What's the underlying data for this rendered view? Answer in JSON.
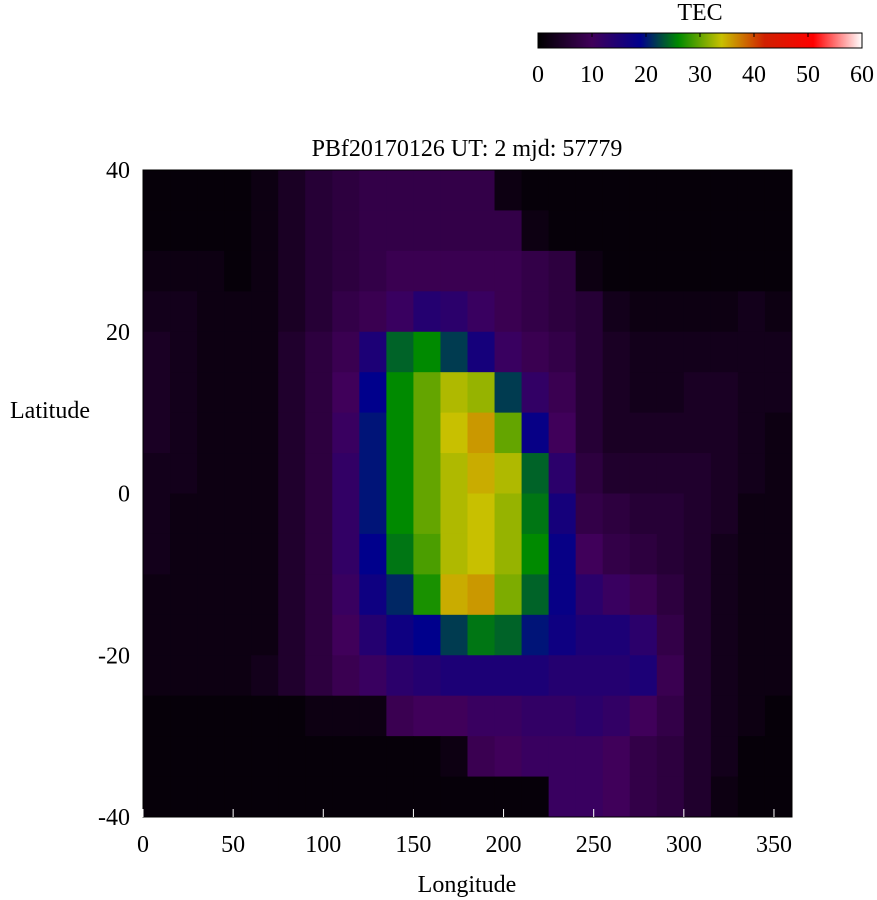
{
  "chart_data": {
    "type": "heatmap",
    "title": "PBf20170126  UT: 2  mjd: 57779",
    "xlabel": "Longitude",
    "ylabel": "Latitude",
    "xlim": [
      0,
      360
    ],
    "ylim": [
      -40,
      40
    ],
    "xticks": [
      "0",
      "50",
      "100",
      "150",
      "200",
      "250",
      "300",
      "350"
    ],
    "yticks": [
      "40",
      "20",
      "0",
      "-20",
      "-40"
    ],
    "colorbar": {
      "label": "TEC",
      "range": [
        0,
        60
      ],
      "ticks": [
        "0",
        "10",
        "20",
        "30",
        "40",
        "50",
        "60"
      ],
      "colormap": [
        {
          "v": 0,
          "c": "#000000"
        },
        {
          "v": 10,
          "c": "#40005a"
        },
        {
          "v": 19,
          "c": "#00008c"
        },
        {
          "v": 26,
          "c": "#008a00"
        },
        {
          "v": 34,
          "c": "#c8c000"
        },
        {
          "v": 42,
          "c": "#d02000"
        },
        {
          "v": 51,
          "c": "#ff0000"
        },
        {
          "v": 60,
          "c": "#ffffff"
        }
      ],
      "position": "top-right"
    },
    "lon_centers": [
      7.5,
      22.5,
      37.5,
      52.5,
      67.5,
      82.5,
      97.5,
      112.5,
      127.5,
      142.5,
      157.5,
      172.5,
      187.5,
      202.5,
      217.5,
      232.5,
      247.5,
      262.5,
      277.5,
      292.5,
      307.5,
      322.5,
      337.5,
      352.5
    ],
    "lat_centers": [
      37.5,
      32.5,
      27.5,
      22.5,
      17.5,
      12.5,
      7.5,
      2.5,
      -2.5,
      -7.5,
      -12.5,
      -17.5,
      -22.5,
      -27.5,
      -32.5,
      -37.5
    ],
    "values": [
      [
        1,
        1,
        1,
        1,
        2,
        4,
        6,
        7,
        8,
        8,
        8,
        8,
        8,
        2,
        1,
        1,
        1,
        1,
        1,
        1,
        1,
        1,
        1,
        1
      ],
      [
        1,
        1,
        1,
        1,
        2,
        4,
        6,
        7,
        8,
        8,
        8,
        8,
        8,
        8,
        2,
        1,
        1,
        1,
        1,
        1,
        1,
        1,
        1,
        1
      ],
      [
        2,
        2,
        2,
        1,
        2,
        4,
        6,
        7,
        8,
        9,
        9,
        9,
        9,
        9,
        8,
        7,
        2,
        1,
        1,
        1,
        1,
        1,
        1,
        1
      ],
      [
        3,
        3,
        2,
        2,
        2,
        4,
        6,
        8,
        9,
        11,
        14,
        13,
        11,
        9,
        8,
        7,
        6,
        3,
        2,
        2,
        2,
        2,
        3,
        2
      ],
      [
        4,
        3,
        2,
        2,
        2,
        5,
        7,
        9,
        15,
        24,
        26,
        22,
        16,
        11,
        9,
        8,
        6,
        4,
        3,
        3,
        3,
        3,
        3,
        3
      ],
      [
        4,
        3,
        2,
        2,
        2,
        5,
        7,
        10,
        19,
        26,
        30,
        33,
        32,
        22,
        12,
        9,
        6,
        4,
        3,
        3,
        4,
        4,
        3,
        3
      ],
      [
        4,
        3,
        2,
        2,
        2,
        5,
        7,
        11,
        20,
        26,
        30,
        34,
        36,
        30,
        18,
        10,
        6,
        4,
        4,
        4,
        4,
        4,
        3,
        2
      ],
      [
        3,
        3,
        2,
        2,
        2,
        5,
        7,
        12,
        20,
        26,
        30,
        33,
        35,
        33,
        24,
        13,
        7,
        5,
        5,
        5,
        5,
        4,
        3,
        2
      ],
      [
        3,
        2,
        2,
        2,
        2,
        5,
        7,
        12,
        20,
        26,
        30,
        33,
        34,
        32,
        25,
        16,
        8,
        7,
        6,
        6,
        5,
        4,
        2,
        2
      ],
      [
        3,
        2,
        2,
        2,
        2,
        5,
        7,
        12,
        19,
        25,
        29,
        33,
        34,
        32,
        26,
        18,
        10,
        8,
        7,
        6,
        5,
        3,
        2,
        2
      ],
      [
        2,
        2,
        2,
        2,
        2,
        5,
        7,
        11,
        17,
        21,
        27,
        35,
        36,
        31,
        24,
        18,
        13,
        11,
        9,
        7,
        5,
        3,
        2,
        2
      ],
      [
        2,
        2,
        2,
        2,
        2,
        5,
        7,
        10,
        14,
        17,
        19,
        22,
        25,
        24,
        20,
        17,
        15,
        15,
        13,
        8,
        5,
        3,
        2,
        2
      ],
      [
        2,
        2,
        2,
        2,
        3,
        5,
        7,
        9,
        11,
        13,
        14,
        15,
        15,
        15,
        15,
        14,
        14,
        14,
        15,
        9,
        5,
        3,
        2,
        2
      ],
      [
        1,
        1,
        1,
        1,
        1,
        1,
        2,
        2,
        2,
        9,
        10,
        10,
        11,
        11,
        12,
        12,
        13,
        12,
        10,
        8,
        5,
        3,
        2,
        1
      ],
      [
        1,
        1,
        1,
        1,
        1,
        1,
        1,
        1,
        1,
        1,
        1,
        2,
        9,
        10,
        11,
        11,
        11,
        10,
        8,
        7,
        5,
        3,
        1,
        1
      ],
      [
        1,
        1,
        1,
        1,
        1,
        1,
        1,
        1,
        1,
        1,
        1,
        1,
        1,
        1,
        1,
        11,
        11,
        10,
        8,
        7,
        5,
        2,
        1,
        1
      ]
    ]
  }
}
